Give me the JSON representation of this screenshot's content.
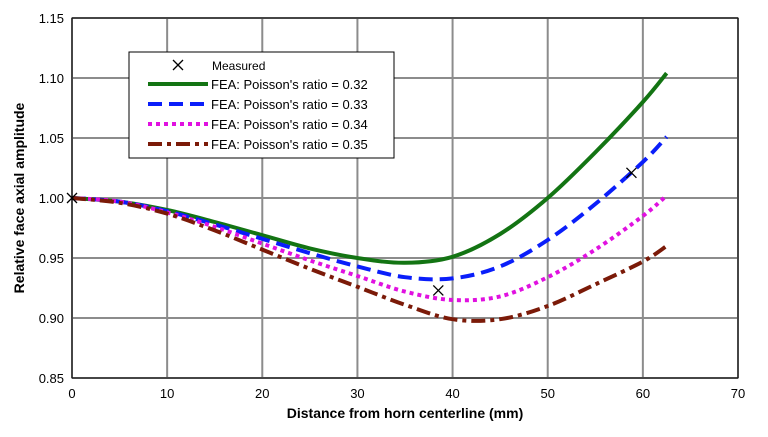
{
  "chart_data": {
    "type": "line",
    "title": "",
    "xlabel": "Distance from horn centerline (mm)",
    "ylabel": "Relative face axial amplitude",
    "xlim": [
      0,
      70
    ],
    "ylim": [
      0.85,
      1.15
    ],
    "xticks": [
      "0",
      "10",
      "20",
      "30",
      "40",
      "50",
      "60",
      "70"
    ],
    "yticks": [
      "0.85",
      "0.90",
      "0.95",
      "1.00",
      "1.05",
      "1.10",
      "1.15"
    ],
    "grid": true,
    "legend_position": "top-left",
    "measured": {
      "name": "Measured",
      "marker": "x",
      "color": "#000000",
      "points": [
        [
          0,
          1.0
        ],
        [
          38.5,
          0.923
        ],
        [
          58.8,
          1.021
        ]
      ]
    },
    "series": [
      {
        "name": "FEA: Poisson's ratio = 0.32",
        "color": "#137413",
        "style": "solid",
        "x": [
          0,
          5,
          10,
          15,
          20,
          25,
          30,
          35,
          40,
          45,
          50,
          55,
          60,
          62.5
        ],
        "y": [
          1.0,
          0.997,
          0.99,
          0.98,
          0.969,
          0.958,
          0.95,
          0.946,
          0.951,
          0.97,
          1.0,
          1.038,
          1.08,
          1.104
        ]
      },
      {
        "name": "FEA: Poisson's ratio = 0.33",
        "color": "#0A1EFA",
        "style": "dashed",
        "x": [
          0,
          5,
          10,
          15,
          20,
          25,
          30,
          35,
          40,
          45,
          50,
          55,
          60,
          62.5
        ],
        "y": [
          1.0,
          0.997,
          0.989,
          0.978,
          0.966,
          0.954,
          0.943,
          0.934,
          0.933,
          0.943,
          0.965,
          0.995,
          1.03,
          1.051
        ]
      },
      {
        "name": "FEA: Poisson's ratio = 0.34",
        "color": "#E011E0",
        "style": "dotted",
        "x": [
          0,
          5,
          10,
          15,
          20,
          25,
          30,
          35,
          40,
          45,
          50,
          55,
          60,
          62.5
        ],
        "y": [
          1.0,
          0.997,
          0.988,
          0.976,
          0.962,
          0.948,
          0.935,
          0.922,
          0.915,
          0.918,
          0.934,
          0.957,
          0.985,
          1.002
        ]
      },
      {
        "name": "FEA: Poisson's ratio = 0.35",
        "color": "#7B1A08",
        "style": "dashdot",
        "x": [
          0,
          5,
          10,
          15,
          20,
          25,
          30,
          35,
          40,
          45,
          50,
          55,
          60,
          62.5
        ],
        "y": [
          1.0,
          0.996,
          0.987,
          0.973,
          0.957,
          0.941,
          0.926,
          0.911,
          0.899,
          0.899,
          0.91,
          0.928,
          0.947,
          0.96
        ]
      }
    ]
  }
}
